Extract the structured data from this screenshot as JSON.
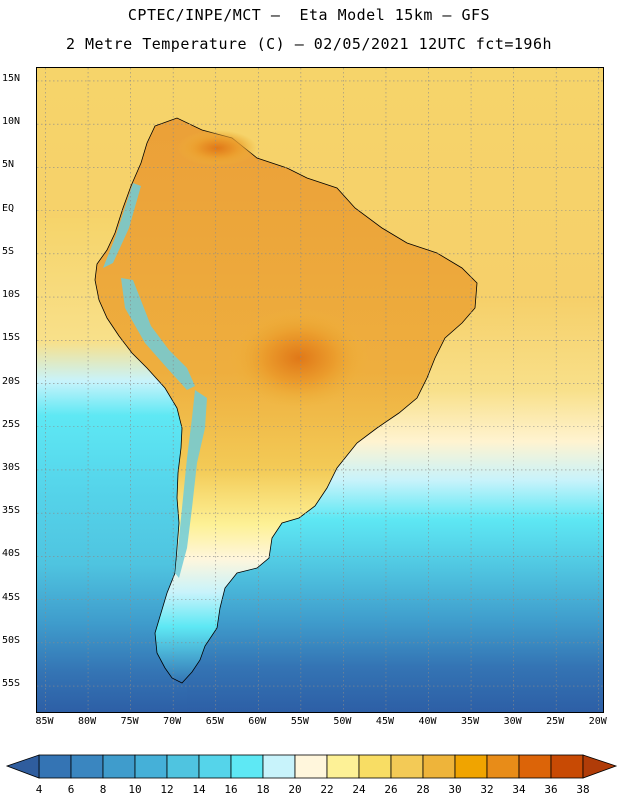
{
  "header": {
    "line1": "CPTEC/INPE/MCT –  Eta Model 15km – GFS",
    "line2": "2 Metre Temperature (C) – 02/05/2021 12UTC fct=196h"
  },
  "axes": {
    "lat_labels": [
      "15N",
      "10N",
      "5N",
      "EQ",
      "5S",
      "10S",
      "15S",
      "20S",
      "25S",
      "30S",
      "35S",
      "40S",
      "45S",
      "50S",
      "55S"
    ],
    "lat_values": [
      15,
      10,
      5,
      0,
      -5,
      -10,
      -15,
      -20,
      -25,
      -30,
      -35,
      -40,
      -45,
      -50,
      -55
    ],
    "lon_labels": [
      "85W",
      "80W",
      "75W",
      "70W",
      "65W",
      "60W",
      "55W",
      "50W",
      "45W",
      "40W",
      "35W",
      "30W",
      "25W",
      "20W"
    ],
    "lon_values": [
      -85,
      -80,
      -75,
      -70,
      -65,
      -60,
      -55,
      -50,
      -45,
      -40,
      -35,
      -30,
      -25,
      -20
    ],
    "lat_range": [
      -58,
      16.5
    ],
    "lon_range": [
      -86,
      -19.5
    ]
  },
  "colorbar": {
    "labels": [
      "4",
      "6",
      "8",
      "10",
      "12",
      "14",
      "16",
      "18",
      "20",
      "22",
      "24",
      "26",
      "28",
      "30",
      "32",
      "34",
      "36",
      "38"
    ],
    "colors": [
      "#3474b4",
      "#3a86c0",
      "#3f9ccc",
      "#45b0d8",
      "#4fc4e0",
      "#55d4ea",
      "#5ee8f4",
      "#c8f3fb",
      "#fff6dc",
      "#fdf196",
      "#f8dd64",
      "#f3ca56",
      "#eeb43a",
      "#f0a400",
      "#e88c18",
      "#dc6408",
      "#c84a04"
    ],
    "left_color": "#2f5d9e",
    "right_color": "#b03c08",
    "unit": "C"
  },
  "legend_colors": {
    "ocean_tropical": "#f5d26c",
    "ocean_warm": "#f9e07a",
    "ocean_mid": "#fff6d6",
    "ocean_cool": "#5ee8f4",
    "ocean_cold": "#3a86c0",
    "ocean_polar": "#2d5fa6",
    "land_hot": "#e8982c",
    "land_warm": "#eeb43a",
    "andes": "#6ecbd9"
  }
}
